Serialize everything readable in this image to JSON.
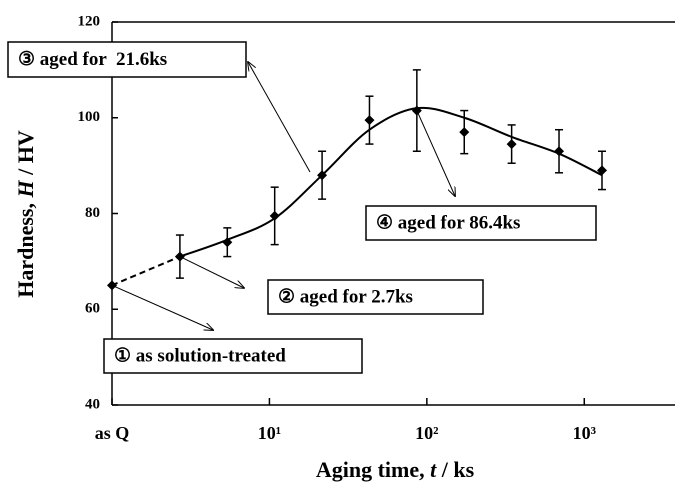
{
  "chart_data": {
    "type": "scatter",
    "x_label": [
      "Aging time, ",
      "t",
      " / ks"
    ],
    "y_label": [
      "Hardness, ",
      "H",
      " / HV"
    ],
    "x": [
      1,
      2.7,
      5.4,
      10.8,
      21.6,
      43.2,
      86.4,
      172.8,
      345.6,
      691.2,
      1296
    ],
    "values": [
      65,
      71,
      74,
      79.5,
      88,
      99.5,
      101.5,
      97,
      94.5,
      93,
      89
    ],
    "errors": [
      null,
      4.5,
      3,
      6,
      5,
      5,
      8.5,
      4.5,
      4,
      4.5,
      4
    ],
    "fit": {
      "x": [
        1,
        2.7,
        5.4,
        10.8,
        21.6,
        43.2,
        86.4,
        172.8,
        345.6,
        691.2,
        1296
      ],
      "values": [
        65,
        71,
        74.5,
        79,
        88,
        97.5,
        102,
        100,
        96,
        92.5,
        88
      ]
    },
    "color": "#000000",
    "log_x": true,
    "xlim": [
      1,
      3770
    ],
    "xticks": [
      {
        "value": 1,
        "label": "as Q"
      },
      {
        "value": 10,
        "label": "10¹"
      },
      {
        "value": 100,
        "label": "10²"
      },
      {
        "value": 1000,
        "label": "10³"
      }
    ],
    "ylim": [
      40,
      120
    ],
    "yticks": [
      40,
      60,
      80,
      100,
      120
    ],
    "annotations": [
      "① as solution-treated",
      "② aged for 2.7ks",
      "③ aged for  21.6ks",
      "④ aged for 86.4ks"
    ]
  }
}
